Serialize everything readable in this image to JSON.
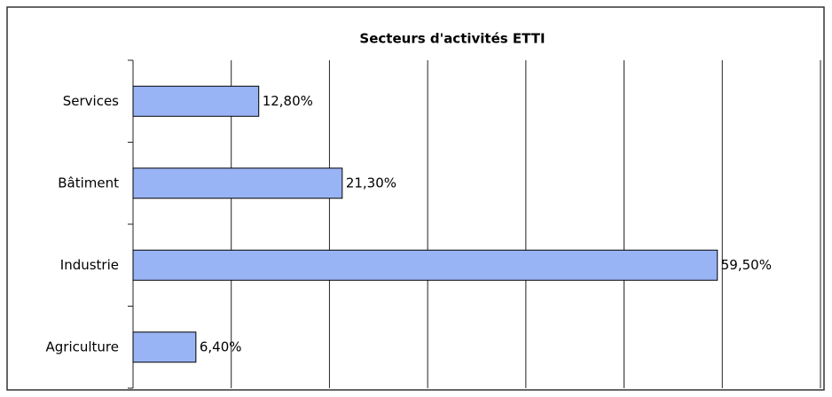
{
  "chart_data": {
    "type": "bar",
    "orientation": "horizontal",
    "title": "Secteurs d'activités ETTI",
    "categories": [
      "Services",
      "Bâtiment",
      "Industrie",
      "Agriculture"
    ],
    "values": [
      12.8,
      21.3,
      59.5,
      6.4
    ],
    "value_labels": [
      "12,80%",
      "21,30%",
      "59,50%",
      "6,40%"
    ],
    "color": "#99b4f5",
    "xlim": [
      0,
      70
    ],
    "xticks": [
      0,
      10,
      20,
      30,
      40,
      50,
      60,
      70
    ],
    "grid": true
  }
}
